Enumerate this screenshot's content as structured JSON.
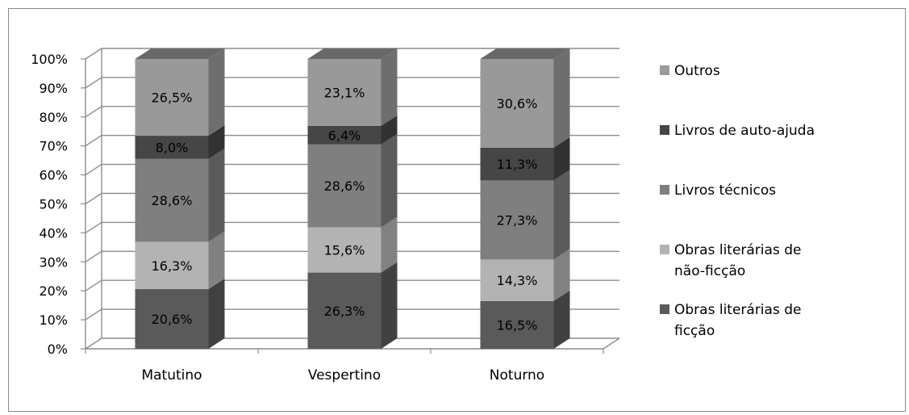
{
  "chart_data": {
    "type": "bar",
    "stacked": true,
    "three_d": true,
    "categories": [
      "Matutino",
      "Vespertino",
      "Noturno"
    ],
    "series": [
      {
        "name": "Obras literárias de ficção",
        "legend_lines": [
          "Obras literárias de",
          "ficção"
        ],
        "values": [
          20.6,
          26.3,
          16.5
        ],
        "labels": [
          "20,6%",
          "26,3%",
          "16,5%"
        ],
        "color": "#5a5a5a"
      },
      {
        "name": "Obras literárias de não-ficção",
        "legend_lines": [
          "Obras literárias de",
          "não-ficção"
        ],
        "values": [
          16.3,
          15.6,
          14.3
        ],
        "labels": [
          "16,3%",
          "15,6%",
          "14,3%"
        ],
        "color": "#b3b3b3"
      },
      {
        "name": "Livros técnicos",
        "legend_lines": [
          "Livros técnicos"
        ],
        "values": [
          28.6,
          28.6,
          27.3
        ],
        "labels": [
          "28,6%",
          "28,6%",
          "27,3%"
        ],
        "color": "#7f7f7f"
      },
      {
        "name": "Livros de auto-ajuda",
        "legend_lines": [
          "Livros de auto-ajuda"
        ],
        "values": [
          8.0,
          6.4,
          11.3
        ],
        "labels": [
          "8,0%",
          "6,4%",
          "11,3%"
        ],
        "color": "#464646"
      },
      {
        "name": "Outros",
        "legend_lines": [
          "Outros"
        ],
        "values": [
          26.5,
          23.1,
          30.6
        ],
        "labels": [
          "26,5%",
          "23,1%",
          "30,6%"
        ],
        "color": "#999999"
      }
    ],
    "y_ticks": [
      "0%",
      "10%",
      "20%",
      "30%",
      "40%",
      "50%",
      "60%",
      "70%",
      "80%",
      "90%",
      "100%"
    ],
    "ylim": [
      0,
      100
    ],
    "grid": true,
    "legend_position": "right"
  }
}
